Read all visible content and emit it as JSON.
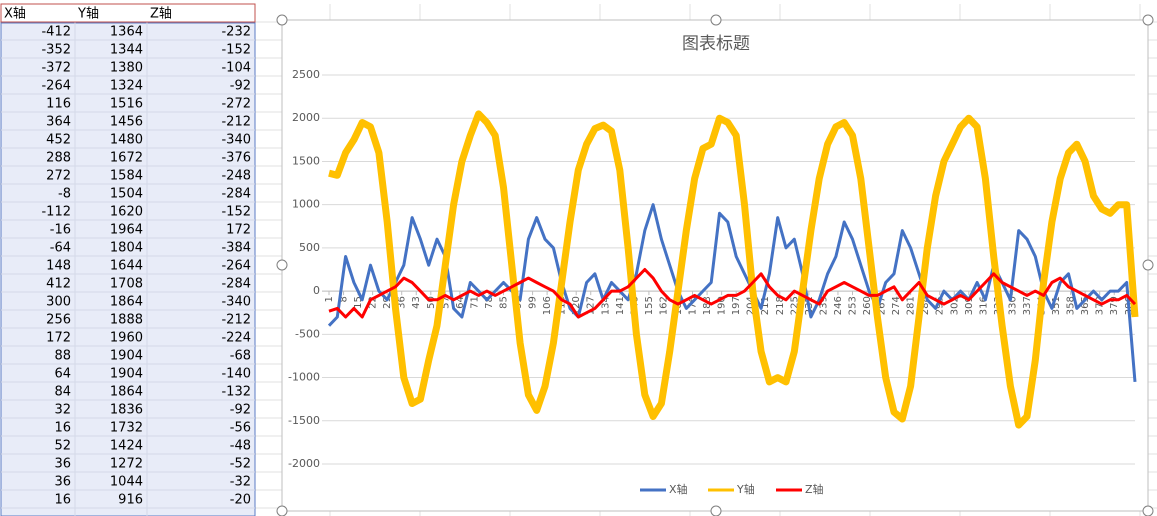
{
  "sheet": {
    "headers": [
      "X轴",
      "Y轴",
      "Z轴"
    ],
    "rows": [
      [
        -412,
        1364,
        -232
      ],
      [
        -352,
        1344,
        -152
      ],
      [
        -372,
        1380,
        -104
      ],
      [
        -264,
        1324,
        -92
      ],
      [
        116,
        1516,
        -272
      ],
      [
        364,
        1456,
        -212
      ],
      [
        452,
        1480,
        -340
      ],
      [
        288,
        1672,
        -376
      ],
      [
        272,
        1584,
        -248
      ],
      [
        -8,
        1504,
        -284
      ],
      [
        -112,
        1620,
        -152
      ],
      [
        -16,
        1964,
        172
      ],
      [
        -64,
        1804,
        -384
      ],
      [
        148,
        1644,
        -264
      ],
      [
        412,
        1708,
        -284
      ],
      [
        300,
        1864,
        -340
      ],
      [
        256,
        1888,
        -212
      ],
      [
        172,
        1960,
        -224
      ],
      [
        88,
        1904,
        -68
      ],
      [
        64,
        1904,
        -140
      ],
      [
        84,
        1864,
        -132
      ],
      [
        32,
        1836,
        -92
      ],
      [
        16,
        1732,
        -56
      ],
      [
        52,
        1424,
        -48
      ],
      [
        36,
        1272,
        -52
      ],
      [
        36,
        1044,
        -32
      ],
      [
        16,
        916,
        -20
      ]
    ]
  },
  "chart_data": {
    "type": "line",
    "title": "图表标题",
    "x": [
      1,
      5,
      9,
      13,
      17,
      21,
      25,
      29,
      33,
      37,
      41,
      45,
      49,
      53,
      57,
      61,
      65,
      69,
      73,
      77,
      81,
      85,
      89,
      93,
      97,
      101,
      105,
      109,
      113,
      117,
      121,
      125,
      129,
      133,
      137,
      141,
      145,
      149,
      153,
      157,
      161,
      165,
      169,
      173,
      177,
      181,
      185,
      189,
      193,
      197,
      201,
      205,
      209,
      213,
      217,
      221,
      225,
      229,
      233,
      237,
      241,
      245,
      249,
      253,
      257,
      261,
      265,
      269,
      273,
      277,
      281,
      285,
      289,
      293,
      297,
      301,
      305,
      309,
      313,
      317,
      321,
      325,
      329,
      333,
      337,
      341,
      345,
      349,
      353,
      357,
      361,
      365,
      369,
      373,
      377,
      381,
      385,
      389
    ],
    "xlim": [
      1,
      389
    ],
    "xticks": [
      1,
      8,
      15,
      22,
      29,
      36,
      43,
      50,
      57,
      64,
      71,
      78,
      85,
      92,
      99,
      106,
      113,
      120,
      127,
      134,
      141,
      148,
      155,
      162,
      169,
      176,
      183,
      190,
      197,
      204,
      211,
      218,
      225,
      232,
      239,
      246,
      253,
      260,
      267,
      274,
      281,
      288,
      295,
      302,
      309,
      316,
      323,
      330,
      337,
      344,
      351,
      358,
      365,
      372,
      379,
      386
    ],
    "ylim": [
      -2000,
      2500
    ],
    "yticks": [
      -2000,
      -1500,
      -1000,
      -500,
      0,
      500,
      1000,
      1500,
      2000,
      2500
    ],
    "grid": true,
    "legend": "bottom",
    "series": [
      {
        "name": "X轴",
        "color": "#4472c4",
        "values": [
          -400,
          -300,
          400,
          100,
          -100,
          300,
          0,
          -100,
          100,
          300,
          850,
          600,
          300,
          600,
          400,
          -200,
          -300,
          100,
          0,
          -100,
          0,
          100,
          0,
          -100,
          600,
          850,
          600,
          500,
          100,
          -200,
          -300,
          100,
          200,
          -100,
          100,
          0,
          -100,
          200,
          700,
          1000,
          600,
          300,
          0,
          -200,
          -100,
          0,
          100,
          900,
          800,
          400,
          200,
          0,
          -200,
          200,
          850,
          500,
          600,
          200,
          -300,
          -100,
          200,
          400,
          800,
          600,
          300,
          0,
          -200,
          100,
          200,
          700,
          500,
          200,
          -100,
          -200,
          0,
          -100,
          0,
          -100,
          100,
          -100,
          300,
          100,
          -100,
          700,
          600,
          400,
          0,
          -200,
          100,
          200,
          -200,
          -100,
          0,
          -100,
          0,
          0,
          100,
          -1050
        ]
      },
      {
        "name": "Y轴",
        "color": "#ffc000",
        "values": [
          1364,
          1340,
          1600,
          1750,
          1950,
          1900,
          1600,
          800,
          -200,
          -1000,
          -1300,
          -1250,
          -800,
          -400,
          300,
          1000,
          1500,
          1800,
          2050,
          1950,
          1800,
          1200,
          300,
          -600,
          -1200,
          -1380,
          -1100,
          -600,
          100,
          800,
          1400,
          1700,
          1880,
          1920,
          1850,
          1400,
          500,
          -500,
          -1200,
          -1450,
          -1300,
          -700,
          0,
          700,
          1300,
          1650,
          1700,
          2000,
          1950,
          1800,
          1000,
          0,
          -700,
          -1050,
          -1000,
          -1050,
          -700,
          0,
          700,
          1300,
          1700,
          1900,
          1950,
          1800,
          1300,
          500,
          -300,
          -1000,
          -1400,
          -1480,
          -1100,
          -300,
          500,
          1100,
          1500,
          1700,
          1900,
          2000,
          1900,
          1300,
          400,
          -400,
          -1100,
          -1550,
          -1450,
          -800,
          100,
          800,
          1300,
          1600,
          1700,
          1500,
          1100,
          950,
          900,
          1000,
          1000,
          -300
        ]
      },
      {
        "name": "Z轴",
        "color": "#ff0000",
        "values": [
          -232,
          -200,
          -300,
          -200,
          -300,
          -100,
          -50,
          0,
          50,
          150,
          100,
          0,
          -100,
          -100,
          -50,
          -100,
          -50,
          0,
          -50,
          0,
          -50,
          0,
          50,
          100,
          150,
          100,
          50,
          0,
          -100,
          -150,
          -300,
          -250,
          -200,
          -100,
          0,
          0,
          50,
          150,
          250,
          150,
          0,
          -100,
          -150,
          -100,
          -50,
          -100,
          -150,
          -100,
          -50,
          -50,
          0,
          100,
          200,
          50,
          -50,
          -100,
          0,
          -50,
          -100,
          -150,
          0,
          50,
          100,
          50,
          0,
          -50,
          -50,
          0,
          50,
          -100,
          0,
          100,
          -50,
          -100,
          -150,
          -100,
          -50,
          -100,
          0,
          100,
          200,
          100,
          50,
          0,
          -50,
          0,
          -50,
          100,
          150,
          50,
          0,
          -50,
          -100,
          -150,
          -100,
          -100,
          -50,
          -150
        ]
      }
    ]
  }
}
